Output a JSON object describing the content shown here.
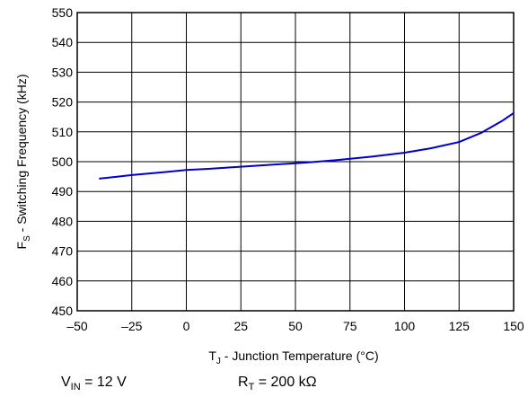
{
  "chart_data": {
    "type": "line",
    "x": [
      -40,
      -25,
      -10,
      0,
      10,
      25,
      40,
      55,
      70,
      85,
      100,
      112,
      125,
      135,
      145,
      150
    ],
    "series": [
      {
        "values": [
          494.3,
          495.5,
          496.5,
          497.2,
          497.6,
          498.3,
          499.0,
          499.7,
          500.6,
          501.7,
          503.0,
          504.5,
          506.6,
          509.6,
          513.8,
          516.3
        ]
      }
    ],
    "xlim": [
      -50,
      150
    ],
    "ylim": [
      450,
      550
    ],
    "xticks": [
      -50,
      -25,
      0,
      25,
      50,
      75,
      100,
      125,
      150
    ],
    "yticks": [
      450,
      460,
      470,
      480,
      490,
      500,
      510,
      520,
      530,
      540,
      550
    ],
    "xtick_labels": [
      "–50",
      "–25",
      "0",
      "25",
      "50",
      "75",
      "100",
      "125",
      "150"
    ],
    "ytick_labels": [
      "450",
      "460",
      "470",
      "480",
      "490",
      "500",
      "510",
      "520",
      "530",
      "540",
      "550"
    ],
    "grid": true,
    "line_color": "#0000cc",
    "xlabel": {
      "main": "T",
      "sub": "J",
      "rest": " - Junction Temperature (°C)"
    },
    "ylabel": {
      "main": "F",
      "sub": "S",
      "rest": " - Switching Frequency (kHz)"
    }
  },
  "conditions": {
    "vin": {
      "main": "V",
      "sub": "IN",
      "rest": " = 12 V"
    },
    "rt": {
      "main": "R",
      "sub": "T",
      "rest": " = 200 kΩ"
    }
  }
}
